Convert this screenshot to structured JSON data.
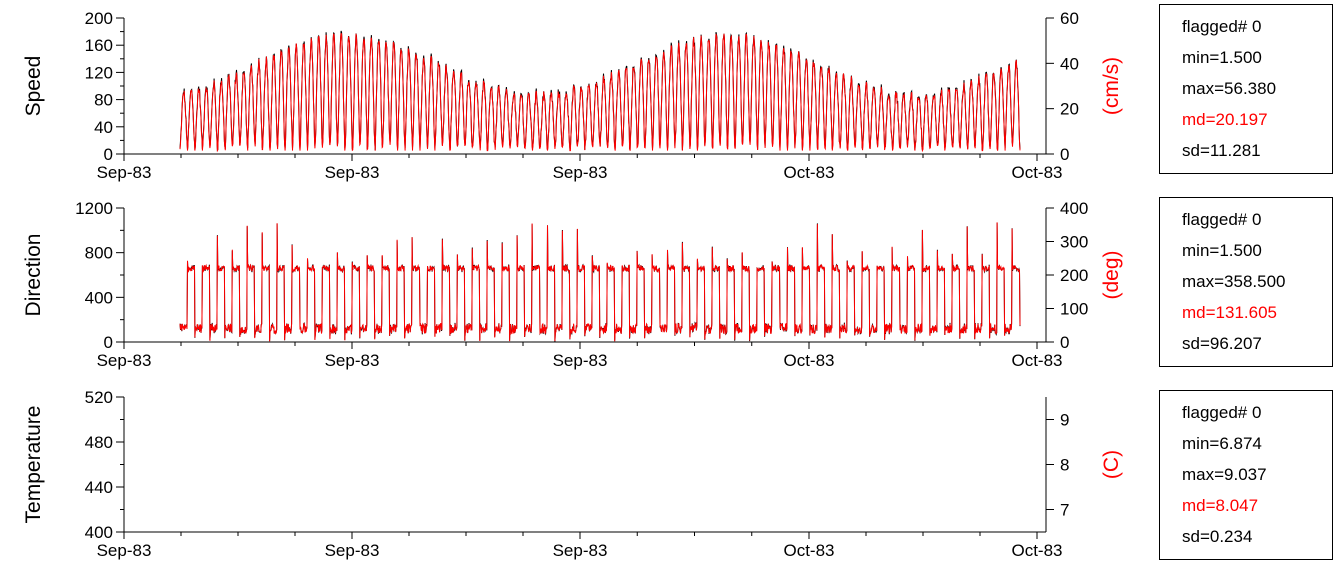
{
  "colors": {
    "reference_series": "#000000",
    "current_series": "#ff0000",
    "md_text": "#ff0000"
  },
  "chart_data": [
    {
      "type": "line",
      "ylabel": "Speed",
      "ylabel_right": "(cm/s)",
      "ylim": [
        0,
        200
      ],
      "yticks": [
        "0",
        "40",
        "80",
        "120",
        "160",
        "200"
      ],
      "ylim_right": [
        0,
        60
      ],
      "yticks_right": [
        "0",
        "20",
        "40",
        "60"
      ],
      "xticks": [
        "Sep-83",
        "Sep-83",
        "Sep-83",
        "Oct-83",
        "Oct-83"
      ],
      "stats": {
        "flagged": "flagged# 0",
        "min": "min=1.500",
        "max": "max=56.380",
        "md": "md=20.197",
        "sd": "sd=11.281"
      },
      "series_shape": {
        "kind": "tidal-speed",
        "min": 1.5,
        "max": 56.38,
        "mean": 20.2,
        "cycles": 56
      }
    },
    {
      "type": "line",
      "ylabel": "Direction",
      "ylabel_right": "(deg)",
      "ylim": [
        0,
        1200
      ],
      "yticks": [
        "0",
        "400",
        "800",
        "1200"
      ],
      "ylim_right": [
        0,
        400
      ],
      "yticks_right": [
        "0",
        "100",
        "200",
        "300",
        "400"
      ],
      "xticks": [
        "Sep-83",
        "Sep-83",
        "Sep-83",
        "Oct-83",
        "Oct-83"
      ],
      "stats": {
        "flagged": "flagged# 0",
        "min": "min=1.500",
        "max": "max=358.500",
        "md": "md=131.605",
        "sd": "sd=96.207"
      },
      "series_shape": {
        "kind": "tidal-direction",
        "low": 40,
        "high": 220,
        "max": 358.5,
        "cycles": 56
      }
    },
    {
      "type": "line",
      "ylabel": "Temperature",
      "ylabel_right": "(C)",
      "ylim": [
        400,
        520
      ],
      "yticks": [
        "400",
        "440",
        "480",
        "520"
      ],
      "ylim_right": [
        6.5,
        9.5
      ],
      "yticks_right": [
        "7",
        "8",
        "9"
      ],
      "xticks": [
        "Sep-83",
        "Sep-83",
        "Sep-83",
        "Oct-83",
        "Oct-83"
      ],
      "stats": {
        "flagged": "flagged# 0",
        "min": "min=6.874",
        "max": "max=9.037",
        "md": "md=8.047",
        "sd": "sd=0.234"
      },
      "series_shape": {
        "kind": "temperature",
        "min": 6.874,
        "max": 9.037,
        "mean": 8.047
      }
    }
  ]
}
